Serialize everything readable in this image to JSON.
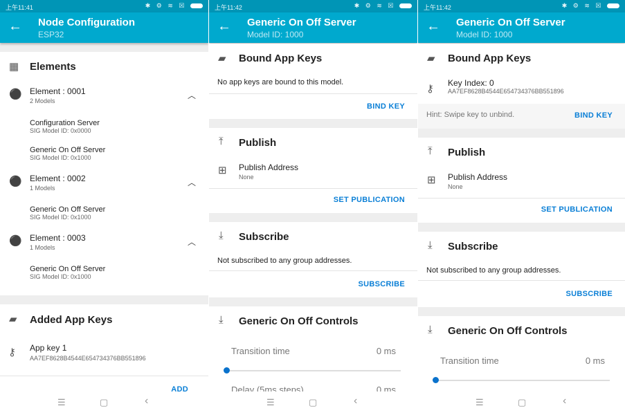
{
  "colors": {
    "toolbar": "#00a9ce",
    "status_bar": "#0095b6",
    "accent": "#0a7fd6",
    "slider": "#0a72cc"
  },
  "panel1": {
    "time": "上午11:41",
    "title": "Node Configuration",
    "subtitle": "ESP32",
    "elements_header": "Elements",
    "elements": [
      {
        "name": "Element : 0001",
        "count": "2 Models",
        "models": [
          {
            "name": "Configuration Server",
            "id": "SIG Model ID: 0x0000"
          },
          {
            "name": "Generic On Off Server",
            "id": "SIG Model ID: 0x1000"
          }
        ]
      },
      {
        "name": "Element : 0002",
        "count": "1 Models",
        "models": [
          {
            "name": "Generic On Off Server",
            "id": "SIG Model ID: 0x1000"
          }
        ]
      },
      {
        "name": "Element : 0003",
        "count": "1 Models",
        "models": [
          {
            "name": "Generic On Off Server",
            "id": "SIG Model ID: 0x1000"
          }
        ]
      }
    ],
    "app_keys_header": "Added App Keys",
    "app_key": {
      "name": "App key 1",
      "value": "AA7EF8628B4544E654734376BB551896"
    },
    "add_label": "ADD"
  },
  "panel2": {
    "time": "上午11:42",
    "title": "Generic On Off Server",
    "subtitle": "Model ID: 1000",
    "bound_header": "Bound App Keys",
    "bound_empty": "No app keys are bound to this model.",
    "bind_label": "BIND KEY",
    "publish_header": "Publish",
    "publish_address_label": "Publish Address",
    "publish_address_value": "None",
    "set_pub_label": "SET PUBLICATION",
    "subscribe_header": "Subscribe",
    "subscribe_empty": "Not subscribed to any group addresses.",
    "subscribe_label": "SUBSCRIBE",
    "controls_header": "Generic On Off Controls",
    "transition_label": "Transition time",
    "transition_value": "0 ms",
    "transition_fraction": 0,
    "delay_label": "Delay (5ms steps)",
    "delay_value": "0 ms"
  },
  "panel3": {
    "time": "上午11:42",
    "title": "Generic On Off Server",
    "subtitle": "Model ID: 1000",
    "bound_header": "Bound App Keys",
    "key_index": "Key Index: 0",
    "key_value": "AA7EF8628B4544E654734376BB551896",
    "hint": "Hint: Swipe key to unbind.",
    "bind_label": "BIND KEY",
    "publish_header": "Publish",
    "publish_address_label": "Publish Address",
    "publish_address_value": "None",
    "set_pub_label": "SET PUBLICATION",
    "subscribe_header": "Subscribe",
    "subscribe_empty": "Not subscribed to any group addresses.",
    "subscribe_label": "SUBSCRIBE",
    "controls_header": "Generic On Off Controls",
    "transition_label": "Transition time",
    "transition_value": "0 ms",
    "transition_fraction": 0
  },
  "nav": {
    "menu": "☰",
    "home": "▢",
    "back": "‹"
  }
}
